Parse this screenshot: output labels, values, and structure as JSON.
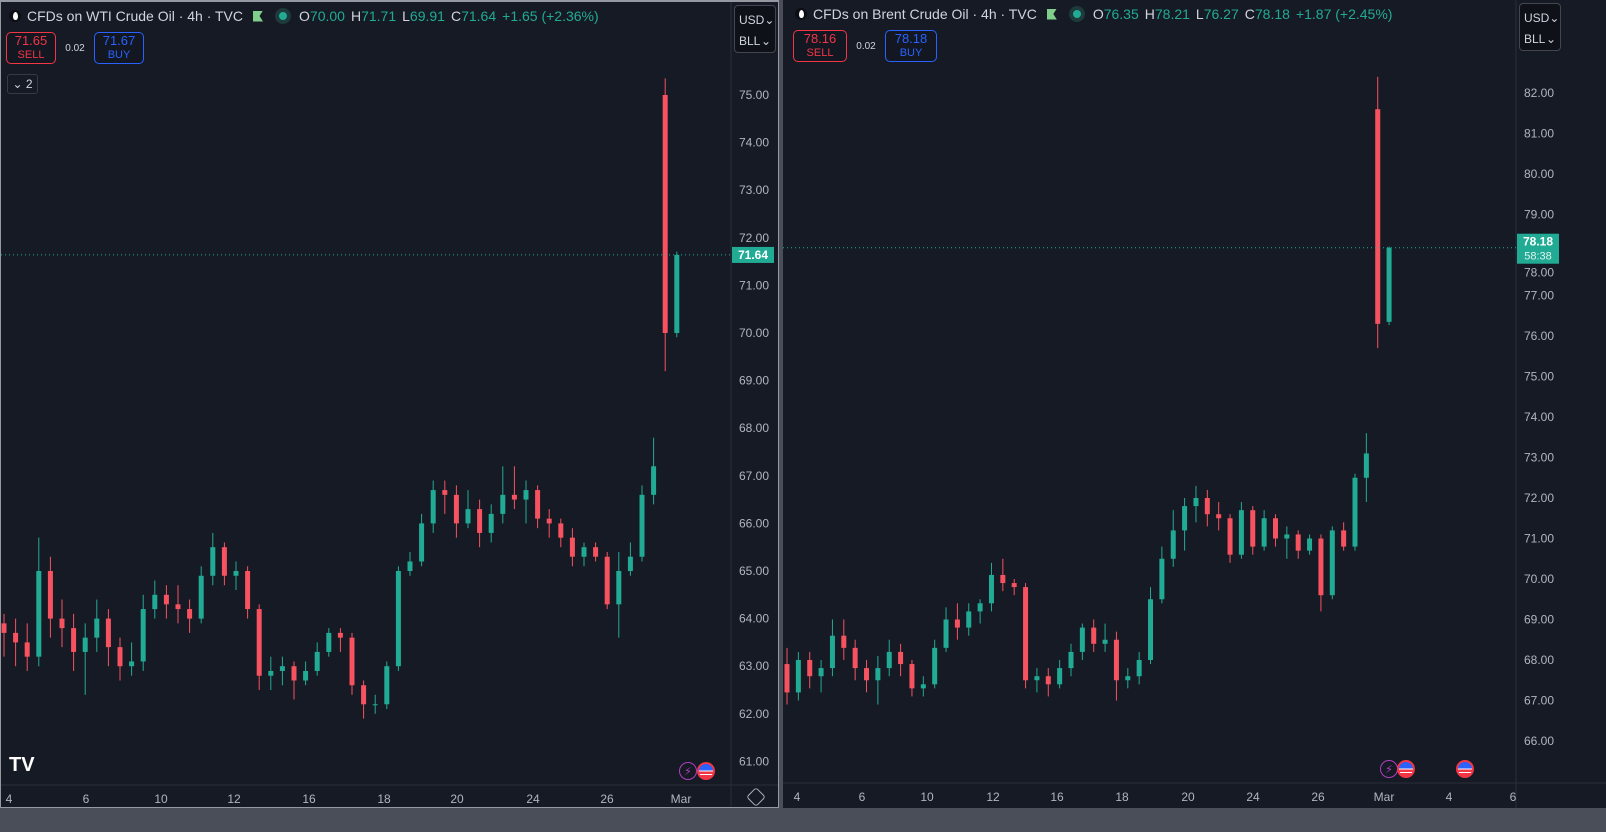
{
  "colors": {
    "background": "#161a25",
    "up": "#22ab94",
    "down": "#f7525f",
    "text": "#b2b5be",
    "sell": "#f23645",
    "buy": "#2962ff"
  },
  "panes": [
    {
      "legend": {
        "title": "CFDs on WTI Crude Oil · 4h · TVC",
        "o_label": "O",
        "o": "70.00",
        "h_label": "H",
        "h": "71.71",
        "l_label": "L",
        "l": "69.91",
        "c_label": "C",
        "c": "71.64",
        "change": "+1.65 (+2.36%)"
      },
      "trade": {
        "sell_price": "71.65",
        "sell_label": "SELL",
        "spread": "0.02",
        "buy_price": "71.67",
        "buy_label": "BUY"
      },
      "indicators_toggle": "2",
      "currency": "USD",
      "unit": "BLL",
      "last_price_label": "71.64",
      "countdown": "",
      "events": [
        "lightning-icon",
        "us-flag-icon"
      ]
    },
    {
      "legend": {
        "title": "CFDs on Brent Crude Oil · 4h · TVC",
        "o_label": "O",
        "o": "76.35",
        "h_label": "H",
        "h": "78.21",
        "l_label": "L",
        "l": "76.27",
        "c_label": "C",
        "c": "78.18",
        "change": "+1.87 (+2.45%)"
      },
      "trade": {
        "sell_price": "78.16",
        "sell_label": "SELL",
        "spread": "0.02",
        "buy_price": "78.18",
        "buy_label": "BUY"
      },
      "currency": "USD",
      "unit": "BLL",
      "last_price_label": "78.18",
      "countdown": "58:38",
      "events": [
        "lightning-icon",
        "us-flag-icon",
        "us-flag-icon"
      ]
    }
  ],
  "chart_data": [
    {
      "type": "candlestick",
      "symbol": "CFDs on WTI Crude Oil",
      "interval": "4h",
      "grid": false,
      "ylim": [
        61,
        75
      ],
      "yticks": [
        "75.00",
        "74.00",
        "73.00",
        "72.00",
        "71.00",
        "70.00",
        "69.00",
        "68.00",
        "67.00",
        "66.00",
        "65.00",
        "64.00",
        "63.00",
        "62.00",
        "61.00"
      ],
      "xticks": [
        "4",
        "6",
        "10",
        "12",
        "16",
        "18",
        "20",
        "24",
        "26",
        "Mar"
      ],
      "last_price": 71.64,
      "ohlc": [
        [
          63.9,
          64.1,
          63.2,
          63.7
        ],
        [
          63.7,
          64.0,
          63.0,
          63.5
        ],
        [
          63.5,
          63.9,
          62.9,
          63.2
        ],
        [
          63.2,
          65.7,
          63.0,
          65.0
        ],
        [
          65.0,
          65.3,
          63.6,
          64.0
        ],
        [
          64.0,
          64.4,
          63.4,
          63.8
        ],
        [
          63.8,
          64.1,
          62.9,
          63.3
        ],
        [
          63.3,
          63.9,
          62.4,
          63.6
        ],
        [
          63.6,
          64.4,
          63.3,
          64.0
        ],
        [
          64.0,
          64.2,
          63.0,
          63.4
        ],
        [
          63.4,
          63.6,
          62.7,
          63.0
        ],
        [
          63.0,
          63.5,
          62.8,
          63.1
        ],
        [
          63.1,
          64.5,
          62.9,
          64.2
        ],
        [
          64.2,
          64.8,
          64.0,
          64.5
        ],
        [
          64.5,
          64.7,
          64.0,
          64.3
        ],
        [
          64.3,
          64.7,
          63.9,
          64.2
        ],
        [
          64.2,
          64.4,
          63.7,
          64.0
        ],
        [
          64.0,
          65.1,
          63.9,
          64.9
        ],
        [
          64.9,
          65.8,
          64.7,
          65.5
        ],
        [
          65.5,
          65.6,
          64.7,
          64.9
        ],
        [
          64.9,
          65.2,
          64.6,
          65.0
        ],
        [
          65.0,
          65.1,
          64.0,
          64.2
        ],
        [
          64.2,
          64.3,
          62.5,
          62.8
        ],
        [
          62.8,
          63.2,
          62.5,
          62.9
        ],
        [
          62.9,
          63.2,
          62.6,
          63.0
        ],
        [
          63.0,
          63.1,
          62.3,
          62.7
        ],
        [
          62.7,
          63.1,
          62.6,
          62.9
        ],
        [
          62.9,
          63.5,
          62.8,
          63.3
        ],
        [
          63.3,
          63.8,
          63.2,
          63.7
        ],
        [
          63.7,
          63.8,
          63.3,
          63.6
        ],
        [
          63.6,
          63.7,
          62.4,
          62.6
        ],
        [
          62.6,
          62.7,
          61.9,
          62.2
        ],
        [
          62.2,
          62.4,
          62.0,
          62.2
        ],
        [
          62.2,
          63.1,
          62.1,
          63.0
        ],
        [
          63.0,
          65.1,
          62.9,
          65.0
        ],
        [
          65.0,
          65.4,
          64.9,
          65.2
        ],
        [
          65.2,
          66.2,
          65.1,
          66.0
        ],
        [
          66.0,
          66.9,
          65.8,
          66.7
        ],
        [
          66.7,
          66.9,
          66.2,
          66.6
        ],
        [
          66.6,
          66.8,
          65.7,
          66.0
        ],
        [
          66.0,
          66.7,
          65.9,
          66.3
        ],
        [
          66.3,
          66.5,
          65.5,
          65.8
        ],
        [
          65.8,
          66.4,
          65.6,
          66.2
        ],
        [
          66.2,
          67.2,
          66.0,
          66.6
        ],
        [
          66.6,
          67.2,
          66.3,
          66.5
        ],
        [
          66.5,
          66.9,
          66.0,
          66.7
        ],
        [
          66.7,
          66.8,
          65.9,
          66.1
        ],
        [
          66.1,
          66.3,
          65.7,
          66.0
        ],
        [
          66.0,
          66.1,
          65.5,
          65.7
        ],
        [
          65.7,
          65.9,
          65.1,
          65.3
        ],
        [
          65.3,
          65.6,
          65.1,
          65.5
        ],
        [
          65.5,
          65.6,
          65.2,
          65.3
        ],
        [
          65.3,
          65.4,
          64.2,
          64.3
        ],
        [
          64.3,
          65.4,
          63.6,
          65.0
        ],
        [
          65.0,
          65.6,
          64.9,
          65.3
        ],
        [
          65.3,
          66.8,
          65.2,
          66.6
        ],
        [
          66.6,
          67.8,
          66.4,
          67.2
        ],
        [
          75.0,
          75.35,
          69.2,
          70.0
        ],
        [
          70.0,
          71.71,
          69.91,
          71.64
        ]
      ]
    },
    {
      "type": "candlestick",
      "symbol": "CFDs on Brent Crude Oil",
      "interval": "4h",
      "grid": false,
      "ylim": [
        66,
        82
      ],
      "yticks": [
        "82.00",
        "81.00",
        "80.00",
        "79.00",
        "78.00",
        "77.00",
        "76.00",
        "75.00",
        "74.00",
        "73.00",
        "72.00",
        "71.00",
        "70.00",
        "69.00",
        "68.00",
        "67.00",
        "66.00"
      ],
      "xticks": [
        "4",
        "6",
        "10",
        "12",
        "16",
        "18",
        "20",
        "24",
        "26",
        "Mar",
        "4",
        "6"
      ],
      "last_price": 78.18,
      "ohlc": [
        [
          67.9,
          68.3,
          66.9,
          67.2
        ],
        [
          67.2,
          68.2,
          67.0,
          68.0
        ],
        [
          68.0,
          68.2,
          67.3,
          67.6
        ],
        [
          67.6,
          68.0,
          67.2,
          67.8
        ],
        [
          67.8,
          69.0,
          67.6,
          68.6
        ],
        [
          68.6,
          69.0,
          68.0,
          68.3
        ],
        [
          68.3,
          68.5,
          67.5,
          67.8
        ],
        [
          67.8,
          68.0,
          67.2,
          67.5
        ],
        [
          67.5,
          68.1,
          66.9,
          67.8
        ],
        [
          67.8,
          68.5,
          67.6,
          68.2
        ],
        [
          68.2,
          68.4,
          67.6,
          67.9
        ],
        [
          67.9,
          68.0,
          67.1,
          67.3
        ],
        [
          67.3,
          67.6,
          67.1,
          67.4
        ],
        [
          67.4,
          68.5,
          67.3,
          68.3
        ],
        [
          68.3,
          69.3,
          68.2,
          69.0
        ],
        [
          69.0,
          69.4,
          68.5,
          68.8
        ],
        [
          68.8,
          69.4,
          68.6,
          69.2
        ],
        [
          69.2,
          69.5,
          68.9,
          69.4
        ],
        [
          69.4,
          70.4,
          69.2,
          70.1
        ],
        [
          70.1,
          70.5,
          69.7,
          69.9
        ],
        [
          69.9,
          70.0,
          69.6,
          69.8
        ],
        [
          69.8,
          69.9,
          67.3,
          67.5
        ],
        [
          67.5,
          67.8,
          67.2,
          67.6
        ],
        [
          67.6,
          67.8,
          67.1,
          67.4
        ],
        [
          67.4,
          68.0,
          67.3,
          67.8
        ],
        [
          67.8,
          68.4,
          67.6,
          68.2
        ],
        [
          68.2,
          68.9,
          68.0,
          68.8
        ],
        [
          68.8,
          69.0,
          68.2,
          68.4
        ],
        [
          68.4,
          68.9,
          68.2,
          68.5
        ],
        [
          68.5,
          68.7,
          67.0,
          67.5
        ],
        [
          67.5,
          67.8,
          67.3,
          67.6
        ],
        [
          67.6,
          68.2,
          67.4,
          68.0
        ],
        [
          68.0,
          69.8,
          67.9,
          69.5
        ],
        [
          69.5,
          70.8,
          69.4,
          70.5
        ],
        [
          70.5,
          71.7,
          70.3,
          71.2
        ],
        [
          71.2,
          72.0,
          70.7,
          71.8
        ],
        [
          71.8,
          72.3,
          71.4,
          72.0
        ],
        [
          72.0,
          72.2,
          71.3,
          71.6
        ],
        [
          71.6,
          71.9,
          71.2,
          71.5
        ],
        [
          71.5,
          71.6,
          70.4,
          70.6
        ],
        [
          70.6,
          71.9,
          70.5,
          71.7
        ],
        [
          71.7,
          71.8,
          70.6,
          70.8
        ],
        [
          70.8,
          71.7,
          70.7,
          71.5
        ],
        [
          71.5,
          71.6,
          70.8,
          71.0
        ],
        [
          71.0,
          71.3,
          70.5,
          71.1
        ],
        [
          71.1,
          71.2,
          70.5,
          70.7
        ],
        [
          70.7,
          71.1,
          70.6,
          71.0
        ],
        [
          71.0,
          71.1,
          69.2,
          69.6
        ],
        [
          69.6,
          71.3,
          69.5,
          71.2
        ],
        [
          71.2,
          71.4,
          70.7,
          70.8
        ],
        [
          70.8,
          72.6,
          70.7,
          72.5
        ],
        [
          72.5,
          73.6,
          71.9,
          73.1
        ],
        [
          81.6,
          82.4,
          75.7,
          76.3
        ],
        [
          76.35,
          78.21,
          76.27,
          78.18
        ]
      ]
    }
  ]
}
